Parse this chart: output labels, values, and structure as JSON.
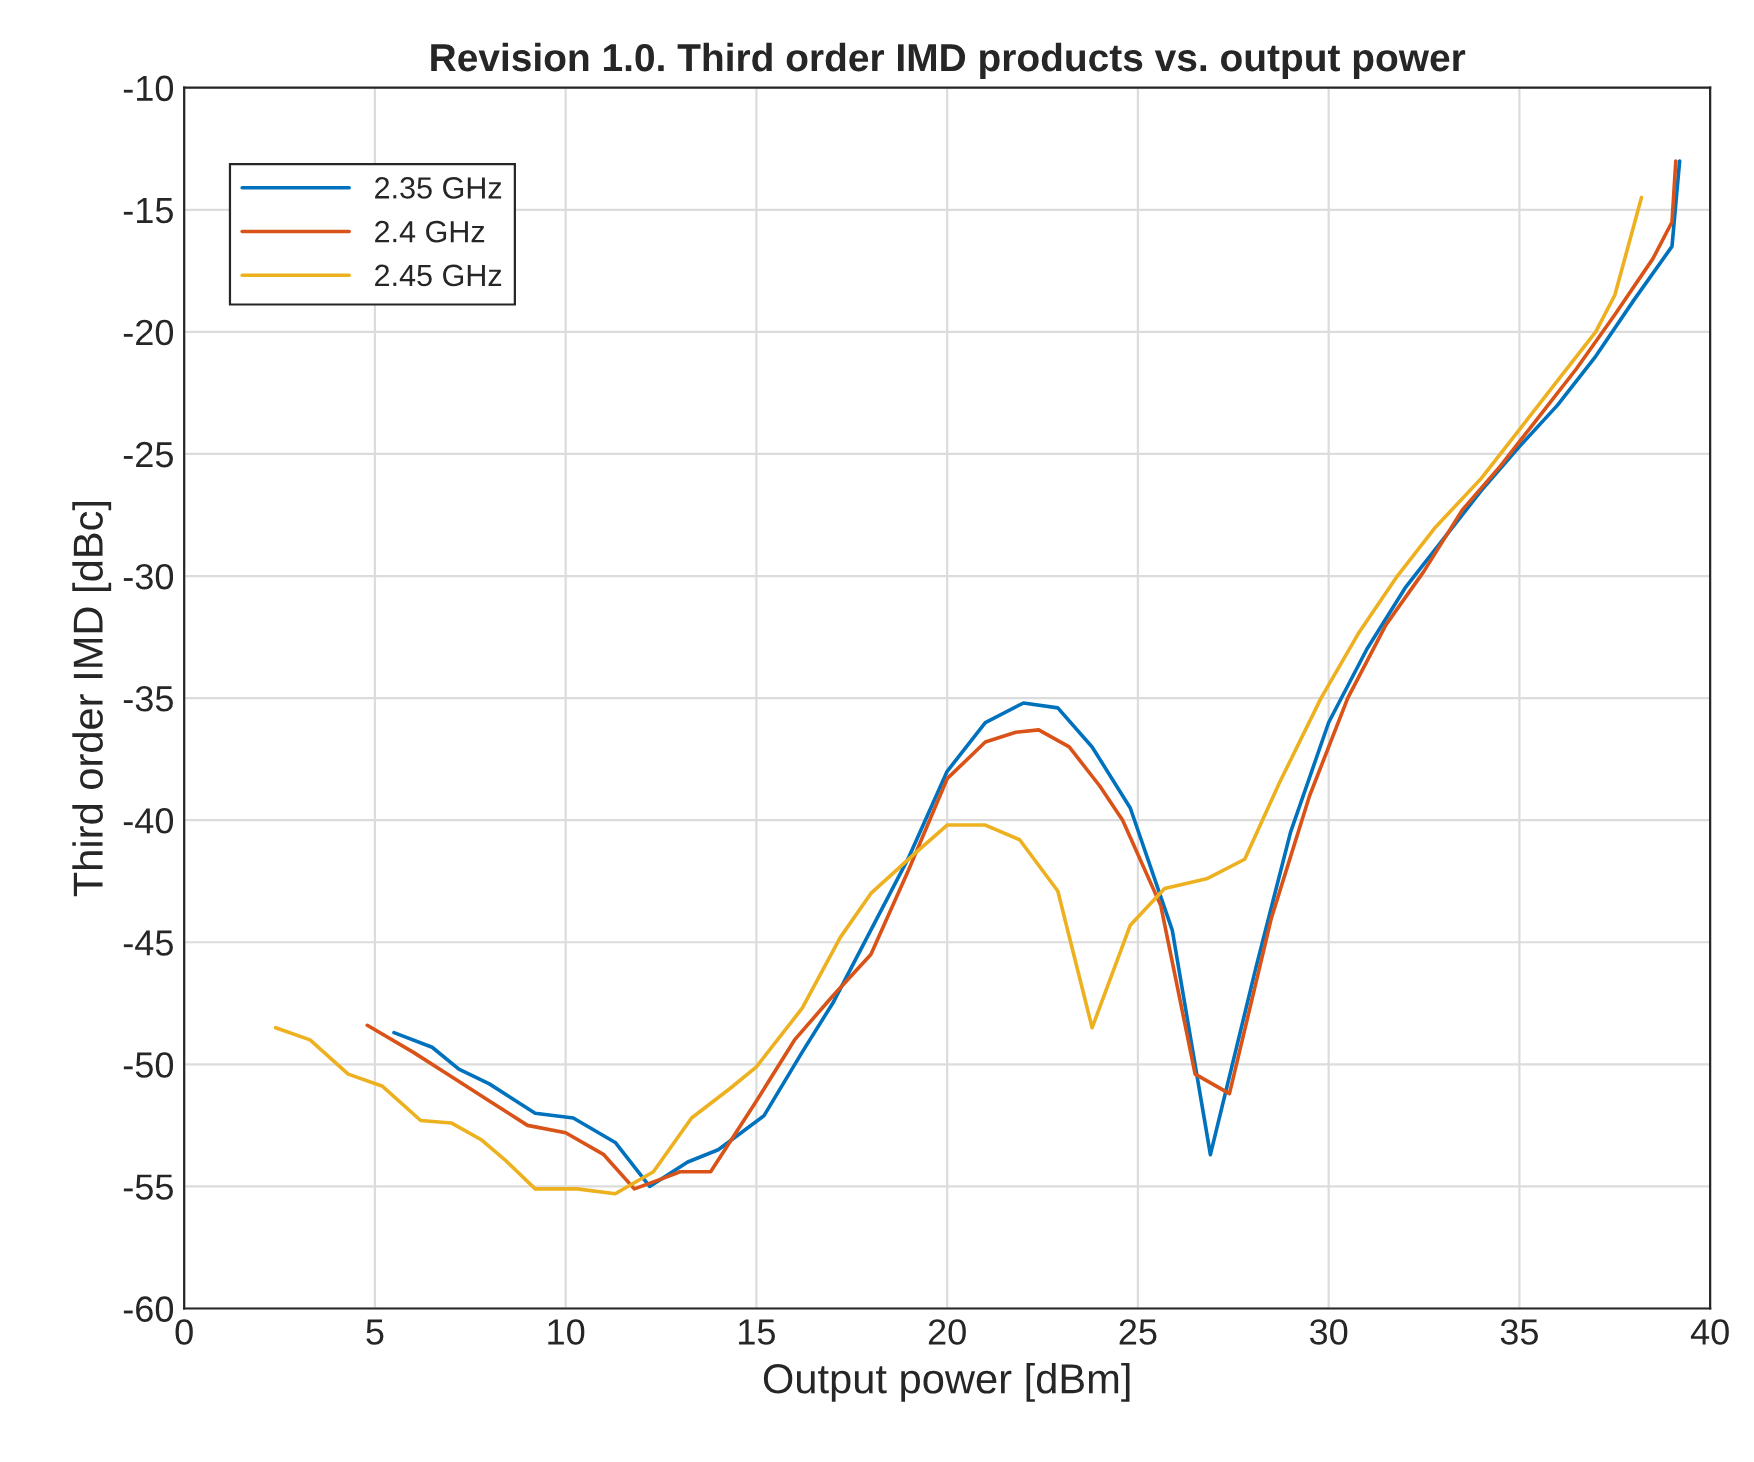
{
  "chart_data": {
    "type": "line",
    "title": "Revision 1.0. Third order IMD products vs. output power",
    "xlabel": "Output power [dBm]",
    "ylabel": "Third order IMD [dBc]",
    "xlim": [
      0,
      40
    ],
    "xticks": [
      0,
      5,
      10,
      15,
      20,
      25,
      30,
      35,
      40
    ],
    "ylim": [
      -60,
      -10
    ],
    "yticks": [
      -60,
      -55,
      -50,
      -45,
      -40,
      -35,
      -30,
      -25,
      -20,
      -15,
      -10
    ],
    "grid": true,
    "legend": "top left",
    "line_style": "solid",
    "series": [
      {
        "name": "2.35 GHz",
        "color": "#0072bd",
        "x": [
          5.5,
          6.5,
          7.2,
          8,
          9.2,
          10.2,
          11.3,
          12.2,
          13.2,
          14,
          15.2,
          16.2,
          17,
          18,
          19,
          20,
          21,
          22,
          22.9,
          23.8,
          24.8,
          25.9,
          26.9,
          28.1,
          29,
          30,
          31,
          32,
          33,
          34,
          35,
          36,
          37,
          38,
          39,
          39.2
        ],
        "values": [
          -48.7,
          -49.3,
          -50.2,
          -50.8,
          -52,
          -52.2,
          -53.2,
          -55,
          -54,
          -53.5,
          -52.1,
          -49.5,
          -47.5,
          -44.5,
          -41.5,
          -38,
          -36,
          -35.2,
          -35.4,
          -37,
          -39.5,
          -44.5,
          -53.7,
          -46,
          -40.5,
          -36,
          -33,
          -30.5,
          -28.5,
          -26.5,
          -24.7,
          -23,
          -21,
          -18.7,
          -16.5,
          -13
        ]
      },
      {
        "name": "2.4 GHz",
        "color": "#d95319",
        "x": [
          4.8,
          6,
          7,
          8,
          9,
          10,
          11,
          11.8,
          12.5,
          13,
          13.8,
          15,
          16,
          17,
          18,
          19,
          20,
          21,
          21.8,
          22.4,
          23.2,
          24,
          24.6,
          25.6,
          26.5,
          27.4,
          28.5,
          29.5,
          30.5,
          31.5,
          32.5,
          33.5,
          34.5,
          35.5,
          36.5,
          37.5,
          38.5,
          39,
          39.1
        ],
        "values": [
          -48.4,
          -49.5,
          -50.5,
          -51.5,
          -52.5,
          -52.8,
          -53.7,
          -55.1,
          -54.7,
          -54.4,
          -54.4,
          -51.5,
          -49,
          -47.2,
          -45.5,
          -42,
          -38.3,
          -36.8,
          -36.4,
          -36.3,
          -37,
          -38.6,
          -40,
          -43.5,
          -50.4,
          -51.2,
          -44,
          -39,
          -35,
          -32,
          -29.8,
          -27.3,
          -25.5,
          -23.5,
          -21.5,
          -19.3,
          -17,
          -15.5,
          -13
        ]
      },
      {
        "name": "2.45 GHz",
        "color": "#edb120",
        "x": [
          2.4,
          3.3,
          4.3,
          5.2,
          6.2,
          7,
          7.8,
          8.4,
          9.2,
          10.3,
          11.3,
          12.3,
          13.3,
          14.3,
          15,
          16.2,
          17.2,
          18,
          19.2,
          20,
          21,
          21.9,
          22.9,
          23.8,
          24.8,
          25.7,
          26.8,
          27.8,
          28.7,
          29.8,
          30.8,
          31.8,
          32.8,
          34,
          35,
          36,
          37,
          37.5,
          38.2
        ],
        "values": [
          -48.5,
          -49,
          -50.4,
          -50.9,
          -52.3,
          -52.4,
          -53.1,
          -53.9,
          -55.1,
          -55.1,
          -55.3,
          -54.4,
          -52.2,
          -51,
          -50.1,
          -47.7,
          -44.8,
          -43,
          -41.3,
          -40.2,
          -40.2,
          -40.8,
          -42.9,
          -48.5,
          -44.3,
          -42.8,
          -42.4,
          -41.6,
          -38.5,
          -35,
          -32.3,
          -30,
          -28,
          -26,
          -24,
          -22,
          -20,
          -18.5,
          -14.5
        ]
      }
    ]
  }
}
